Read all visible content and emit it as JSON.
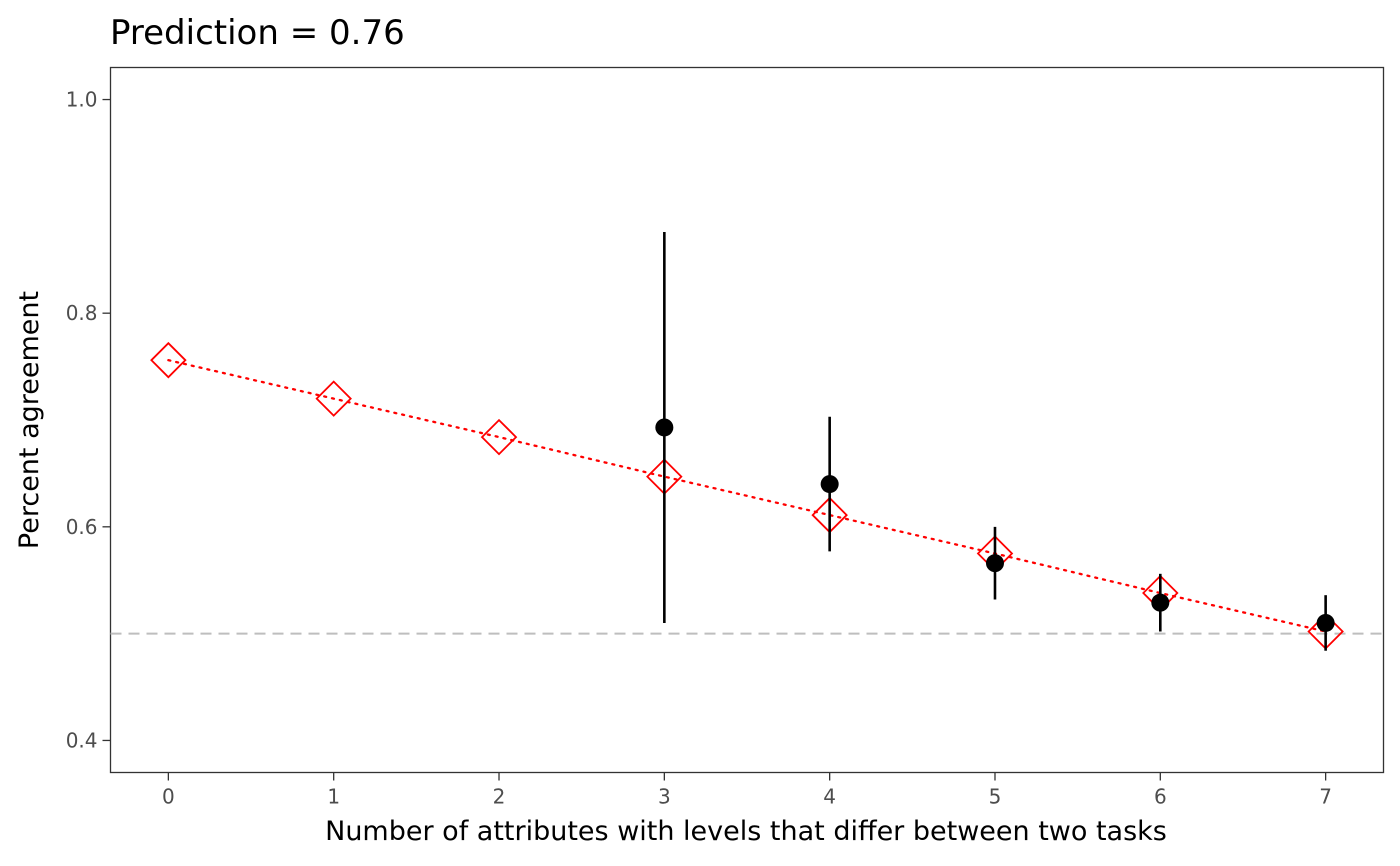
{
  "chart_data": {
    "type": "scatter",
    "title": "Prediction = 0.76",
    "xlabel": "Number of attributes with levels that differ between two tasks",
    "ylabel": "Percent agreement",
    "xlim": [
      -0.35,
      7.35
    ],
    "ylim": [
      0.37,
      1.03
    ],
    "x_ticks": [
      0,
      1,
      2,
      3,
      4,
      5,
      6,
      7
    ],
    "y_ticks": [
      0.4,
      0.6,
      0.8,
      1.0
    ],
    "y_tick_labels": [
      "0.4",
      "0.6",
      "0.8",
      "1.0"
    ],
    "grid": false,
    "reference_line": {
      "y": 0.5,
      "style": "dashed",
      "color": "#bebebe"
    },
    "series": [
      {
        "kind": "prediction",
        "marker": "diamond-open",
        "line_style": "dotted",
        "color": "#ff0000",
        "x": [
          0,
          1,
          2,
          3,
          4,
          5,
          6,
          7
        ],
        "y": [
          0.756,
          0.72,
          0.684,
          0.647,
          0.611,
          0.575,
          0.538,
          0.502
        ]
      },
      {
        "kind": "observed",
        "marker": "filled-circle",
        "color": "#000000",
        "x": [
          3,
          4,
          5,
          6,
          7
        ],
        "y": [
          0.693,
          0.64,
          0.566,
          0.529,
          0.51
        ],
        "lower": [
          0.51,
          0.577,
          0.532,
          0.502,
          0.484
        ],
        "upper": [
          0.876,
          0.703,
          0.6,
          0.556,
          0.536
        ]
      }
    ]
  }
}
